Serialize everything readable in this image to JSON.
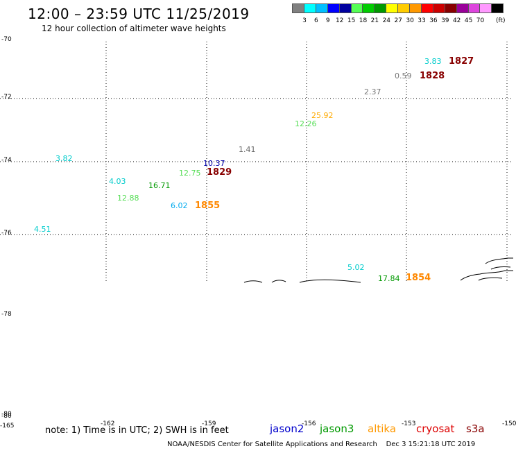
{
  "header": {
    "title": "12:00 – 23:59 UTC 11/25/2019",
    "subtitle": "12 hour collection of altimeter wave heights"
  },
  "legend": {
    "colors": [
      "#808080",
      "#00ffff",
      "#00bfff",
      "#0000ff",
      "#00009f",
      "#55ff55",
      "#00cc00",
      "#009900",
      "#ffff00",
      "#ffcc00",
      "#ff9900",
      "#ff0000",
      "#cc0000",
      "#880000",
      "#990099",
      "#dd44dd",
      "#ff99ff",
      "#000000"
    ],
    "labels": [
      "3",
      "6",
      "9",
      "12",
      "15",
      "18",
      "21",
      "24",
      "27",
      "30",
      "33",
      "36",
      "39",
      "42",
      "45",
      "70"
    ],
    "unit": "(ft)"
  },
  "axes": {
    "lat_labels": [
      "-70",
      "-72",
      "-74",
      "-76",
      "-78",
      "-78",
      "-80"
    ],
    "lon_labels": [
      "-165",
      "-162",
      "-159",
      "-156",
      "-153",
      "-150"
    ]
  },
  "observations": [
    {
      "value": "3.83",
      "color": "#00cccc"
    },
    {
      "value": "0.59",
      "color": "#777777"
    },
    {
      "value": "2.37",
      "color": "#777777"
    },
    {
      "value": "25.92",
      "color": "#ffaa00"
    },
    {
      "value": "12.26",
      "color": "#55dd55"
    },
    {
      "value": "1.41",
      "color": "#666666"
    },
    {
      "value": "3.82",
      "color": "#00cccc"
    },
    {
      "value": "10.37",
      "color": "#0000aa"
    },
    {
      "value": "12.75",
      "color": "#55dd55"
    },
    {
      "value": "4.03",
      "color": "#00cccc"
    },
    {
      "value": "16.71",
      "color": "#009900"
    },
    {
      "value": "12.88",
      "color": "#55dd55"
    },
    {
      "value": "6.02",
      "color": "#00aaee"
    },
    {
      "value": "4.51",
      "color": "#00cccc"
    },
    {
      "value": "5.02",
      "color": "#00cccc"
    },
    {
      "value": "17.84",
      "color": "#009900"
    }
  ],
  "pass_times": [
    {
      "time": "1827",
      "color": "#880000"
    },
    {
      "time": "1828",
      "color": "#880000"
    },
    {
      "time": "1829",
      "color": "#880000"
    },
    {
      "time": "1855",
      "color": "#ff8800"
    },
    {
      "time": "1854",
      "color": "#ff8800"
    }
  ],
  "footer": {
    "note": "note: 1) Time is in UTC; 2) SWH is in feet",
    "satellites": [
      {
        "name": "jason2",
        "color": "#0000cc"
      },
      {
        "name": "jason3",
        "color": "#009900"
      },
      {
        "name": "altika",
        "color": "#ff9900"
      },
      {
        "name": "cryosat",
        "color": "#dd0000"
      },
      {
        "name": "s3a",
        "color": "#880000"
      }
    ],
    "credit": "NOAA/NESDIS Center for Satellite Applications and Research",
    "date": "Dec  3 15:21:18 UTC 2019"
  }
}
